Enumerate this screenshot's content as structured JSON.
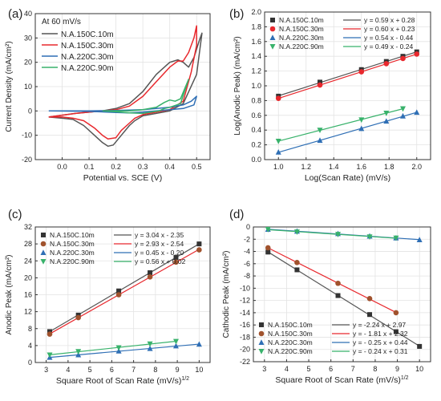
{
  "chart_data": [
    {
      "panel_label": "(a)",
      "type": "line",
      "title": "",
      "xlabel": "Potential vs. SCE (V)",
      "ylabel": "Current Density (mA/cm²)",
      "annotation": "At 60 mV/s",
      "xlim": [
        -0.1,
        0.55
      ],
      "ylim": [
        -20,
        40
      ],
      "xticks": [
        0.0,
        0.1,
        0.2,
        0.3,
        0.4,
        0.5
      ],
      "xtick_labels": [
        "0.0",
        "0.1",
        "0.2",
        "0.3",
        "0.4",
        "0.5"
      ],
      "yticks": [
        -20,
        -10,
        0,
        10,
        20,
        30,
        40
      ],
      "ytick_labels": [
        "-20",
        "-10",
        "0",
        "10",
        "20",
        "30",
        "40"
      ],
      "legend_position": "top-left",
      "series": [
        {
          "name": "N.A.150C.10m",
          "color": "#555555",
          "x": [
            -0.05,
            0.05,
            0.15,
            0.2,
            0.25,
            0.3,
            0.35,
            0.4,
            0.43,
            0.45,
            0.47,
            0.49,
            0.51,
            0.52,
            0.5,
            0.45,
            0.4,
            0.35,
            0.3,
            0.27,
            0.25,
            0.22,
            0.19,
            0.17,
            0.15,
            0.12,
            0.08,
            0.04,
            0.0,
            -0.05
          ],
          "y": [
            -2.5,
            -1,
            0,
            1,
            3,
            8,
            15,
            20,
            21,
            20,
            18,
            22,
            29,
            32,
            15,
            3,
            0,
            -1,
            -2,
            -4,
            -6,
            -10,
            -14,
            -14.5,
            -13,
            -10,
            -6,
            -3.5,
            -3,
            -2.5
          ]
        },
        {
          "name": "N.A.150C.30m",
          "color": "#e8282d",
          "x": [
            -0.05,
            0.05,
            0.15,
            0.2,
            0.25,
            0.3,
            0.35,
            0.4,
            0.43,
            0.45,
            0.47,
            0.49,
            0.5,
            0.5,
            0.48,
            0.45,
            0.4,
            0.35,
            0.3,
            0.27,
            0.25,
            0.22,
            0.2,
            0.17,
            0.15,
            0.12,
            0.08,
            0.04,
            0.0,
            -0.05
          ],
          "y": [
            -2.5,
            -1,
            0,
            0.5,
            2,
            6,
            12,
            18,
            20.5,
            20.5,
            24,
            30,
            35,
            27,
            16,
            4,
            0.5,
            -0.5,
            -1.5,
            -3,
            -5,
            -8,
            -11,
            -11.5,
            -10,
            -7,
            -4,
            -3,
            -2.5,
            -2.5
          ]
        },
        {
          "name": "N.A.220C.30m",
          "color": "#2f6fb5",
          "x": [
            -0.05,
            0.1,
            0.2,
            0.3,
            0.35,
            0.4,
            0.45,
            0.48,
            0.5,
            0.49,
            0.45,
            0.4,
            0.35,
            0.3,
            0.25,
            0.2,
            0.1,
            -0.05
          ],
          "y": [
            0,
            0,
            0.2,
            0.5,
            1,
            1.5,
            2.5,
            4,
            6,
            2.5,
            1,
            0.5,
            0,
            -0.5,
            -0.8,
            -0.6,
            -0.2,
            0
          ]
        },
        {
          "name": "N.A.220C.90m",
          "color": "#38b26b",
          "x": [
            0.15,
            0.25,
            0.3,
            0.35,
            0.38,
            0.4,
            0.42,
            0.44,
            0.47,
            0.44,
            0.4,
            0.38,
            0.36,
            0.33,
            0.3,
            0.25,
            0.2,
            0.15
          ],
          "y": [
            0,
            0,
            0.5,
            1.5,
            3.5,
            4.5,
            4,
            5,
            13,
            3,
            1.5,
            1,
            0,
            -0.5,
            -1,
            -0.8,
            -0.3,
            0
          ]
        }
      ]
    },
    {
      "panel_label": "(b)",
      "type": "scatter",
      "title": "",
      "xlabel": "Log(Scan Rate) (mV/s)",
      "ylabel": "Log(Anodic Peak) (mA/cm²)",
      "xlim": [
        0.9,
        2.1
      ],
      "ylim": [
        0.0,
        2.0
      ],
      "xticks": [
        1.0,
        1.2,
        1.4,
        1.6,
        1.8,
        2.0
      ],
      "xtick_labels": [
        "1.0",
        "1.2",
        "1.4",
        "1.6",
        "1.8",
        "2.0"
      ],
      "yticks": [
        0.0,
        0.2,
        0.4,
        0.6,
        0.8,
        1.0,
        1.2,
        1.4,
        1.6,
        1.8,
        2.0
      ],
      "ytick_labels": [
        "0.0",
        "0.2",
        "0.4",
        "0.6",
        "0.8",
        "1.0",
        "1.2",
        "1.4",
        "1.6",
        "1.8",
        "2.0"
      ],
      "legend_position": "top-left",
      "series": [
        {
          "name": "N.A.150C.10m",
          "marker": "square",
          "color": "#333333",
          "fit_label": "y = 0.59 x + 0.28",
          "fit_color": "#555555",
          "x": [
            1.0,
            1.3,
            1.6,
            1.78,
            1.9,
            2.0
          ],
          "y": [
            0.86,
            1.05,
            1.22,
            1.33,
            1.4,
            1.46
          ]
        },
        {
          "name": "N.A.150C.30m",
          "marker": "circle",
          "color": "#e8282d",
          "fit_label": "y = 0.60 x + 0.23",
          "fit_color": "#e8282d",
          "x": [
            1.0,
            1.3,
            1.6,
            1.78,
            1.9,
            2.0
          ],
          "y": [
            0.83,
            1.01,
            1.19,
            1.3,
            1.37,
            1.43
          ]
        },
        {
          "name": "N.A.220C.30m",
          "marker": "triangle-up",
          "color": "#2f6fb5",
          "fit_label": "y = 0.54 x - 0.44",
          "fit_color": "#2f6fb5",
          "x": [
            1.0,
            1.3,
            1.6,
            1.78,
            1.9,
            2.0
          ],
          "y": [
            0.1,
            0.26,
            0.42,
            0.52,
            0.59,
            0.64
          ]
        },
        {
          "name": "N.A.220C.90m",
          "marker": "triangle-down",
          "color": "#38b26b",
          "fit_label": "y = 0.49 x - 0.24",
          "fit_color": "#38b26b",
          "x": [
            1.0,
            1.3,
            1.6,
            1.78,
            1.9
          ],
          "y": [
            0.25,
            0.4,
            0.54,
            0.63,
            0.69
          ]
        }
      ]
    },
    {
      "panel_label": "(c)",
      "type": "scatter",
      "title": "",
      "xlabel": "Square Root of Scan Rate (mV/s)",
      "xlabel_sup": "1/2",
      "ylabel": "Anodic Peak (mA/cm²)",
      "xlim": [
        2.5,
        10.5
      ],
      "ylim": [
        0,
        32
      ],
      "xticks": [
        3,
        4,
        5,
        6,
        7,
        8,
        9,
        10
      ],
      "xtick_labels": [
        "3",
        "4",
        "5",
        "6",
        "7",
        "8",
        "9",
        "10"
      ],
      "yticks": [
        0,
        4,
        8,
        12,
        16,
        20,
        24,
        28,
        32
      ],
      "ytick_labels": [
        "0",
        "4",
        "8",
        "12",
        "16",
        "20",
        "24",
        "28",
        "32"
      ],
      "legend_position": "top-left",
      "series": [
        {
          "name": "N.A.150C.10m",
          "marker": "square",
          "color": "#333333",
          "fit_label": "y = 3.04 x - 2.35",
          "fit_color": "#555555",
          "x": [
            3.16,
            4.47,
            6.32,
            7.75,
            8.94,
            10.0
          ],
          "y": [
            7.3,
            11.2,
            16.9,
            21.2,
            24.8,
            28.0
          ]
        },
        {
          "name": "N.A.150C.30m",
          "marker": "circle",
          "color": "#a0522d",
          "fit_label": "y = 2.93 x - 2.54",
          "fit_color": "#e8282d",
          "x": [
            3.16,
            4.47,
            6.32,
            7.75,
            8.94,
            10.0
          ],
          "y": [
            6.7,
            10.6,
            16.0,
            20.2,
            23.7,
            26.6
          ]
        },
        {
          "name": "N.A.220C.30m",
          "marker": "triangle-up",
          "color": "#2f6fb5",
          "fit_label": "y = 0.45 x - 0.20",
          "fit_color": "#2f6fb5",
          "x": [
            3.16,
            4.47,
            6.32,
            7.75,
            8.94,
            10.0
          ],
          "y": [
            1.2,
            1.8,
            2.7,
            3.3,
            3.9,
            4.3
          ]
        },
        {
          "name": "N.A.220C.90m",
          "marker": "triangle-down",
          "color": "#38b26b",
          "fit_label": "y = 0.56 x + 0.02",
          "fit_color": "#38b26b",
          "x": [
            3.16,
            4.47,
            6.32,
            7.75,
            8.94
          ],
          "y": [
            1.8,
            2.6,
            3.5,
            4.4,
            5.0
          ]
        }
      ]
    },
    {
      "panel_label": "(d)",
      "type": "scatter",
      "title": "",
      "xlabel": "Square Root of Scan Rate (mV/s)",
      "xlabel_sup": "1/2",
      "ylabel": "Cathodic Peak (mA/cm²)",
      "xlim": [
        2.5,
        10.5
      ],
      "ylim": [
        -22,
        0
      ],
      "xticks": [
        3,
        4,
        5,
        6,
        7,
        8,
        9,
        10
      ],
      "xtick_labels": [
        "3",
        "4",
        "5",
        "6",
        "7",
        "8",
        "9",
        "10"
      ],
      "yticks": [
        -22,
        -20,
        -18,
        -16,
        -14,
        -12,
        -10,
        -8,
        -6,
        -4,
        -2,
        0
      ],
      "ytick_labels": [
        "-22",
        "-20",
        "-18",
        "-16",
        "-14",
        "-12",
        "-10",
        "-8",
        "-6",
        "-4",
        "-2",
        "0"
      ],
      "legend_position": "bottom-left",
      "series": [
        {
          "name": "N.A.150C.10m",
          "marker": "square",
          "color": "#333333",
          "fit_label": "y = -2.24 x + 2.97",
          "fit_color": "#555555",
          "x": [
            3.16,
            4.47,
            6.32,
            7.75,
            8.94,
            10.0
          ],
          "y": [
            -4.1,
            -7.0,
            -11.2,
            -14.3,
            -17.1,
            -19.5
          ]
        },
        {
          "name": "N.A.150C.30m",
          "marker": "circle",
          "color": "#a0522d",
          "fit_label": "y = - 1.81 x + 2.32",
          "fit_color": "#e8282d",
          "x": [
            3.16,
            4.47,
            6.32,
            7.75,
            8.94
          ],
          "y": [
            -3.4,
            -5.8,
            -9.2,
            -11.7,
            -14.0
          ]
        },
        {
          "name": "N.A.220C.30m",
          "marker": "triangle-up",
          "color": "#2f6fb5",
          "fit_label": "y = - 0.25 x + 0.44",
          "fit_color": "#2f6fb5",
          "x": [
            3.16,
            4.47,
            6.32,
            7.75,
            8.94,
            10.0
          ],
          "y": [
            -0.4,
            -0.7,
            -1.1,
            -1.5,
            -1.8,
            -2.1
          ]
        },
        {
          "name": "N.A.220C.90m",
          "marker": "triangle-down",
          "color": "#38b26b",
          "fit_label": "y = - 0.24 x + 0.31",
          "fit_color": "#38b26b",
          "x": [
            3.16,
            4.47,
            6.32,
            7.75,
            8.94
          ],
          "y": [
            -0.4,
            -0.8,
            -1.2,
            -1.6,
            -1.8
          ]
        }
      ]
    }
  ]
}
